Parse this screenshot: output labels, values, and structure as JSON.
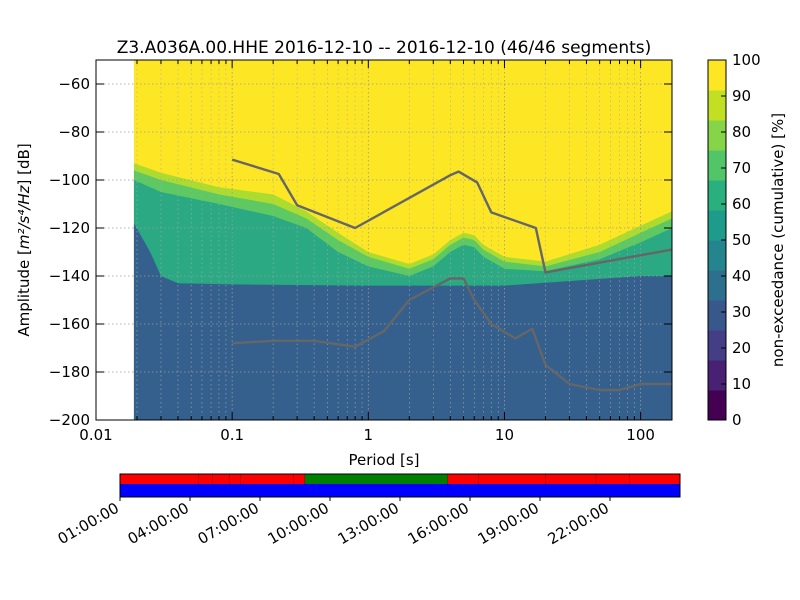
{
  "chart_data": [
    {
      "type": "heatmap",
      "title": "Z3.A036A.00.HHE   2016-12-10 -- 2016-12-10  (46/46 segments)",
      "xlabel": "Period [s]",
      "ylabel_prefix": "Amplitude [",
      "ylabel_unit": "m²/s⁴/Hz",
      "ylabel_suffix": "] [dB]",
      "x_scale": "log",
      "xlim": [
        0.01,
        170
      ],
      "ylim": [
        -200,
        -50
      ],
      "x_ticks": [
        {
          "v": 0.01,
          "label": "0.01"
        },
        {
          "v": 0.1,
          "label": "0.1"
        },
        {
          "v": 1,
          "label": "1"
        },
        {
          "v": 10,
          "label": "10"
        },
        {
          "v": 100,
          "label": "100"
        }
      ],
      "y_ticks": [
        {
          "v": -60,
          "label": "−60"
        },
        {
          "v": -80,
          "label": "−80"
        },
        {
          "v": -100,
          "label": "−100"
        },
        {
          "v": -120,
          "label": "−120"
        },
        {
          "v": -140,
          "label": "−140"
        },
        {
          "v": -160,
          "label": "−160"
        },
        {
          "v": -180,
          "label": "−180"
        },
        {
          "v": -200,
          "label": "−200"
        }
      ],
      "grid": true,
      "data_start_period": 0.019,
      "colorbar": {
        "label": "non-exceedance (cumulative) [%]",
        "range": [
          0,
          100
        ],
        "ticks": [
          "0",
          "10",
          "20",
          "30",
          "40",
          "50",
          "60",
          "70",
          "80",
          "90",
          "100"
        ],
        "colors": [
          "#440154",
          "#482173",
          "#433e85",
          "#38588c",
          "#2d708e",
          "#25858e",
          "#1e9b8a",
          "#2ab07f",
          "#52c569",
          "#86d549",
          "#c2df23",
          "#fde725"
        ]
      },
      "regions": [
        {
          "name": "blue-region",
          "percent": 30,
          "color": "#35608d",
          "upper": [
            [
              0.019,
              -118
            ],
            [
              0.025,
              -130
            ],
            [
              0.03,
              -140
            ],
            [
              0.04,
              -143
            ],
            [
              0.1,
              -143.5
            ],
            [
              1,
              -144
            ],
            [
              10,
              -144
            ],
            [
              100,
              -140
            ],
            [
              170,
              -140
            ]
          ]
        },
        {
          "name": "teal-region",
          "percent": 65,
          "color": "#2aa983",
          "upper": [
            [
              0.019,
              -100
            ],
            [
              0.03,
              -105
            ],
            [
              0.08,
              -110
            ],
            [
              0.2,
              -115
            ],
            [
              0.35,
              -120
            ],
            [
              0.6,
              -130
            ],
            [
              1,
              -136
            ],
            [
              2,
              -140
            ],
            [
              3,
              -136
            ],
            [
              4,
              -130
            ],
            [
              5,
              -127
            ],
            [
              6,
              -128
            ],
            [
              7,
              -132
            ],
            [
              10,
              -137
            ],
            [
              20,
              -138
            ],
            [
              50,
              -133
            ],
            [
              100,
              -126
            ],
            [
              170,
              -120
            ]
          ]
        },
        {
          "name": "green-region",
          "percent": 80,
          "color": "#5ec962",
          "upper": [
            [
              0.019,
              -96
            ],
            [
              0.03,
              -100
            ],
            [
              0.08,
              -106
            ],
            [
              0.2,
              -110
            ],
            [
              0.35,
              -116
            ],
            [
              0.6,
              -125
            ],
            [
              1,
              -132
            ],
            [
              2,
              -137
            ],
            [
              3,
              -133
            ],
            [
              4,
              -127
            ],
            [
              5,
              -124
            ],
            [
              6,
              -125
            ],
            [
              7,
              -129
            ],
            [
              10,
              -134
            ],
            [
              20,
              -136
            ],
            [
              50,
              -130
            ],
            [
              100,
              -122
            ],
            [
              170,
              -116
            ]
          ]
        },
        {
          "name": "lime-region",
          "percent": 90,
          "color": "#addc30",
          "upper": [
            [
              0.019,
              -93
            ],
            [
              0.03,
              -97
            ],
            [
              0.08,
              -103
            ],
            [
              0.2,
              -106
            ],
            [
              0.35,
              -113
            ],
            [
              0.6,
              -122
            ],
            [
              1,
              -130
            ],
            [
              2,
              -135
            ],
            [
              3,
              -131
            ],
            [
              4,
              -125
            ],
            [
              5,
              -122
            ],
            [
              6,
              -123
            ],
            [
              7,
              -127
            ],
            [
              10,
              -132
            ],
            [
              20,
              -134
            ],
            [
              50,
              -127
            ],
            [
              100,
              -119
            ],
            [
              170,
              -113
            ]
          ]
        }
      ],
      "top_color": "#fde725",
      "series": [
        {
          "name": "",
          "color": "#666666",
          "x": [
            0.1,
            0.22,
            0.3,
            0.8,
            4,
            4.6,
            6.3,
            8,
            17,
            20,
            170
          ],
          "y": [
            -91.5,
            -97.5,
            -110.5,
            -120,
            -98,
            -96.5,
            -101,
            -113.5,
            -120,
            -138.5,
            -129
          ]
        },
        {
          "name": "",
          "color": "#666666",
          "x": [
            0.1,
            0.2,
            0.4,
            0.8,
            1.3,
            2,
            4,
            5,
            6,
            8,
            12,
            16,
            20,
            30,
            50,
            70,
            100,
            170
          ],
          "y": [
            -168,
            -167,
            -167,
            -169.5,
            -163,
            -150,
            -141,
            -141,
            -150,
            -160,
            -166,
            -162,
            -177,
            -185,
            -187.5,
            -187.5,
            -185,
            -185
          ]
        }
      ]
    },
    {
      "type": "timeline",
      "x_ticks": [
        "01:00:00",
        "04:00:00",
        "07:00:00",
        "10:00:00",
        "13:00:00",
        "16:00:00",
        "19:00:00",
        "22:00:00"
      ],
      "bars": [
        {
          "name": "coverage-bar",
          "color": "#ff0000",
          "fraction_start": 0,
          "fraction_end": 1
        },
        {
          "name": "data-bar",
          "color": "#0000ff",
          "fraction_start": 0,
          "fraction_end": 1
        }
      ],
      "highlight": {
        "color": "#008000",
        "fraction_start": 0.33,
        "fraction_end": 0.585
      },
      "dividers_fraction": [
        0.14,
        0.165,
        0.195,
        0.215,
        0.31,
        0.33,
        0.585,
        0.64,
        0.76,
        0.85,
        0.91
      ]
    }
  ]
}
